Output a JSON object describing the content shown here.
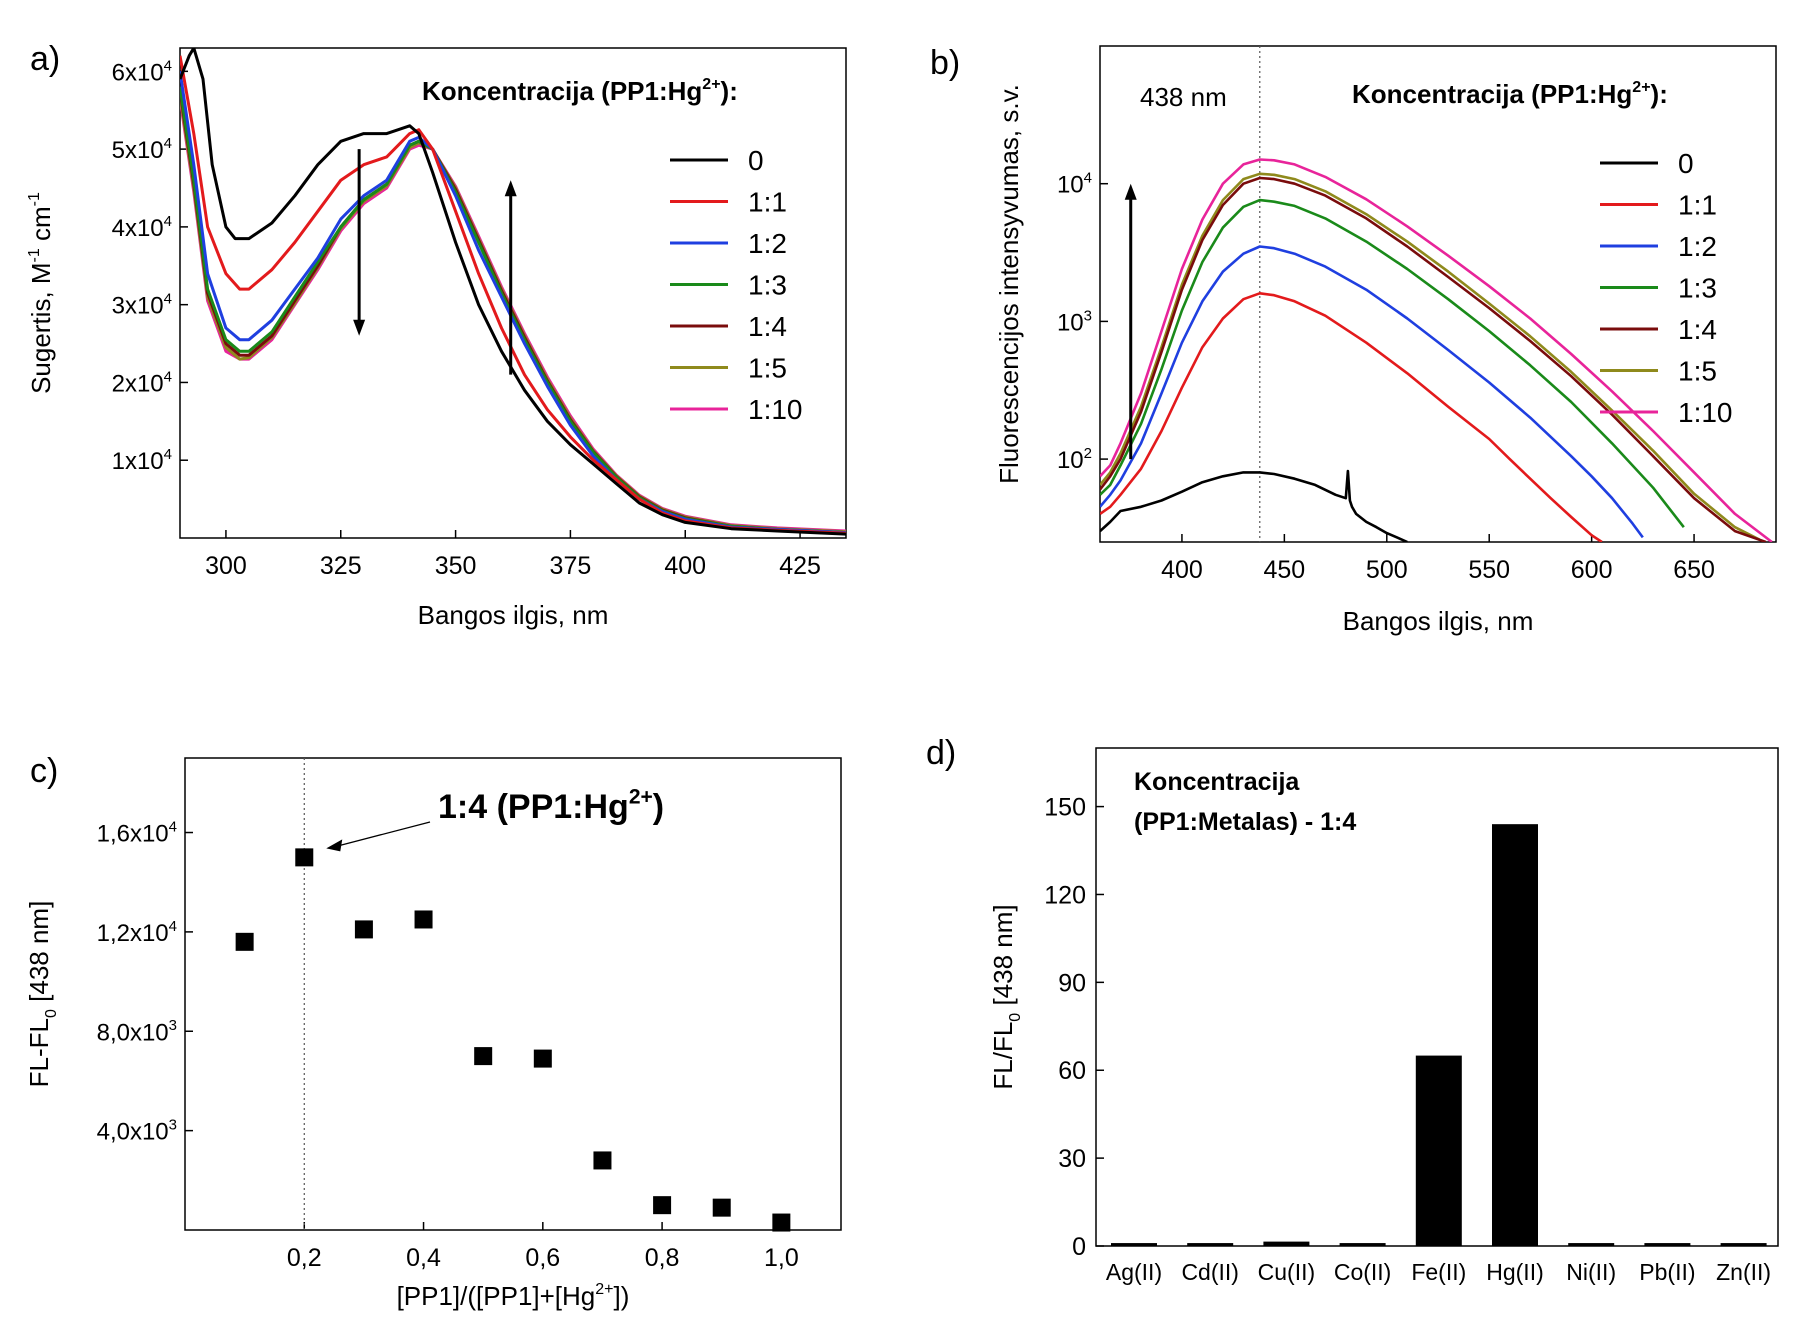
{
  "chart_data": [
    {
      "panel_label": "a)",
      "type": "line",
      "xlabel": "Bangos ilgis, nm",
      "ylabel": "Sugertis, M-1 cm-1",
      "xlim": [
        290,
        435
      ],
      "ylim": [
        0,
        63000
      ],
      "x_ticks": [
        300,
        325,
        350,
        375,
        400,
        425
      ],
      "y_ticks": [
        {
          "value": 10000,
          "mant": "1x10",
          "exp": "4"
        },
        {
          "value": 20000,
          "mant": "2x10",
          "exp": "4"
        },
        {
          "value": 30000,
          "mant": "3x10",
          "exp": "4"
        },
        {
          "value": 40000,
          "mant": "4x10",
          "exp": "4"
        },
        {
          "value": 50000,
          "mant": "5x10",
          "exp": "4"
        },
        {
          "value": 60000,
          "mant": "6x10",
          "exp": "4"
        }
      ],
      "legend": {
        "title": "Koncentracija (PP1:Hg",
        "title_sup": "2+",
        "title_end": "):",
        "placement": "top-right"
      },
      "annotations": [
        {
          "kind": "arrow-down",
          "x": 329,
          "y_from": 50000,
          "y_to": 26000
        },
        {
          "kind": "arrow-up",
          "x": 362,
          "y_from": 21000,
          "y_to": 46000
        }
      ],
      "series": [
        {
          "name": "0",
          "color": "#000000",
          "x": [
            290,
            292,
            293,
            295,
            297,
            300,
            302,
            305,
            310,
            315,
            320,
            325,
            330,
            335,
            340,
            342,
            345,
            350,
            355,
            360,
            365,
            370,
            375,
            380,
            385,
            390,
            395,
            400,
            410,
            420,
            435
          ],
          "y": [
            59000,
            62000,
            63000,
            59000,
            48000,
            40000,
            38500,
            38500,
            40500,
            44000,
            48000,
            51000,
            52000,
            52000,
            53000,
            52000,
            47000,
            38000,
            30000,
            24000,
            19000,
            15000,
            12000,
            9500,
            7000,
            4500,
            3000,
            2000,
            1200,
            900,
            500
          ]
        },
        {
          "name": "1:1",
          "color": "#e31a1c",
          "x": [
            290,
            293,
            296,
            300,
            303,
            305,
            310,
            315,
            320,
            325,
            330,
            335,
            340,
            342,
            345,
            350,
            355,
            360,
            365,
            370,
            375,
            380,
            385,
            390,
            395,
            400,
            410,
            420,
            435
          ],
          "y": [
            62000,
            52000,
            40000,
            34000,
            32000,
            32000,
            34500,
            38000,
            42000,
            46000,
            48000,
            49000,
            52000,
            52500,
            50000,
            42000,
            34000,
            27000,
            21000,
            16500,
            13000,
            10000,
            7500,
            5000,
            3200,
            2200,
            1300,
            1000,
            600
          ]
        },
        {
          "name": "1:2",
          "color": "#1f3fe0",
          "x": [
            290,
            293,
            296,
            300,
            303,
            305,
            310,
            315,
            320,
            325,
            330,
            335,
            340,
            342,
            345,
            350,
            355,
            360,
            365,
            370,
            375,
            380,
            385,
            390,
            395,
            400,
            410,
            420,
            435
          ],
          "y": [
            60000,
            48000,
            34000,
            27000,
            25500,
            25500,
            28000,
            32000,
            36000,
            41000,
            44000,
            46000,
            51000,
            51500,
            50000,
            44000,
            37000,
            31000,
            25000,
            19500,
            14500,
            10500,
            7500,
            5000,
            3400,
            2400,
            1400,
            1100,
            700
          ]
        },
        {
          "name": "1:3",
          "color": "#1a8a1a",
          "x": [
            290,
            293,
            296,
            300,
            303,
            305,
            310,
            315,
            320,
            325,
            330,
            335,
            340,
            342,
            345,
            350,
            355,
            360,
            365,
            370,
            375,
            380,
            385,
            390,
            395,
            400,
            410,
            420,
            435
          ],
          "y": [
            58000,
            46000,
            32000,
            25500,
            24000,
            24000,
            26500,
            31000,
            35500,
            40000,
            43500,
            45500,
            50500,
            51000,
            50000,
            44500,
            38000,
            31500,
            25500,
            20000,
            15000,
            11000,
            7800,
            5200,
            3500,
            2500,
            1500,
            1100,
            700
          ]
        },
        {
          "name": "1:4",
          "color": "#7a0c0c",
          "x": [
            290,
            293,
            296,
            300,
            303,
            305,
            310,
            315,
            320,
            325,
            330,
            335,
            340,
            342,
            345,
            350,
            355,
            360,
            365,
            370,
            375,
            380,
            385,
            390,
            395,
            400,
            410,
            420,
            435
          ],
          "y": [
            57500,
            45500,
            31500,
            25000,
            23500,
            23500,
            26000,
            30500,
            35000,
            40000,
            43500,
            45500,
            50500,
            51000,
            50000,
            44800,
            38300,
            31800,
            25800,
            20200,
            15200,
            11100,
            7900,
            5300,
            3600,
            2600,
            1500,
            1100,
            700
          ]
        },
        {
          "name": "1:5",
          "color": "#8f8a1c",
          "x": [
            290,
            293,
            296,
            300,
            303,
            305,
            310,
            315,
            320,
            325,
            330,
            335,
            340,
            342,
            345,
            350,
            355,
            360,
            365,
            370,
            375,
            380,
            385,
            390,
            395,
            400,
            410,
            420,
            435
          ],
          "y": [
            57000,
            45000,
            31000,
            24500,
            23000,
            23200,
            25800,
            30200,
            34800,
            39800,
            43300,
            45300,
            50200,
            50800,
            50000,
            45000,
            38500,
            32000,
            26000,
            20400,
            15400,
            11200,
            8000,
            5400,
            3700,
            2700,
            1600,
            1200,
            800
          ]
        },
        {
          "name": "1:10",
          "color": "#e8249a",
          "x": [
            290,
            293,
            296,
            300,
            303,
            305,
            310,
            315,
            320,
            325,
            330,
            335,
            340,
            342,
            345,
            350,
            355,
            360,
            365,
            370,
            375,
            380,
            385,
            390,
            395,
            400,
            410,
            420,
            435
          ],
          "y": [
            56500,
            44500,
            30500,
            24000,
            23000,
            23000,
            25500,
            30000,
            34500,
            39500,
            43000,
            45000,
            50000,
            50500,
            50000,
            45200,
            38800,
            32300,
            26300,
            20700,
            15700,
            11400,
            8100,
            5500,
            3800,
            2800,
            1700,
            1300,
            900
          ]
        }
      ]
    },
    {
      "panel_label": "b)",
      "type": "line",
      "scale_y": "log",
      "xlabel": "Bangos ilgis, nm",
      "ylabel": "Fluorescencijos intensyvumas, s.v.",
      "xlim": [
        360,
        690
      ],
      "ylim": [
        25,
        100000
      ],
      "x_ticks": [
        400,
        450,
        500,
        550,
        600,
        650
      ],
      "y_ticks": [
        {
          "value": 100,
          "mant": "10",
          "exp": "2"
        },
        {
          "value": 1000,
          "mant": "10",
          "exp": "3"
        },
        {
          "value": 10000,
          "mant": "10",
          "exp": "4"
        }
      ],
      "vline_x": 438,
      "peak_label": "438 nm",
      "legend": {
        "title": "Koncentracija (PP1:Hg",
        "title_sup": "2+",
        "title_end": "):",
        "placement": "top-right"
      },
      "annotations": [
        {
          "kind": "arrow-up",
          "x": 375,
          "y_from": 100,
          "y_to": 10000
        }
      ],
      "series": [
        {
          "name": "0",
          "color": "#000000",
          "x": [
            360,
            365,
            370,
            380,
            390,
            400,
            410,
            420,
            430,
            438,
            445,
            455,
            465,
            475,
            480,
            481,
            482,
            483,
            485,
            490,
            495,
            500,
            505,
            510
          ],
          "y": [
            30,
            35,
            42,
            45,
            50,
            58,
            68,
            75,
            80,
            80,
            78,
            72,
            65,
            55,
            52,
            82,
            50,
            45,
            40,
            35,
            32,
            29,
            27,
            25
          ]
        },
        {
          "name": "1:1",
          "color": "#e31a1c",
          "x": [
            360,
            365,
            370,
            380,
            390,
            400,
            410,
            420,
            430,
            438,
            445,
            455,
            470,
            490,
            510,
            530,
            550,
            560,
            570,
            580,
            590,
            600,
            605
          ],
          "y": [
            40,
            45,
            55,
            85,
            160,
            330,
            650,
            1050,
            1450,
            1600,
            1550,
            1400,
            1100,
            700,
            420,
            240,
            140,
            100,
            72,
            52,
            38,
            28,
            25
          ]
        },
        {
          "name": "1:2",
          "color": "#1f3fe0",
          "x": [
            360,
            365,
            370,
            380,
            390,
            400,
            410,
            420,
            430,
            438,
            445,
            455,
            470,
            490,
            510,
            530,
            550,
            570,
            590,
            600,
            610,
            620,
            625
          ],
          "y": [
            45,
            55,
            70,
            130,
            300,
            700,
            1400,
            2300,
            3100,
            3500,
            3400,
            3100,
            2500,
            1700,
            1050,
            620,
            360,
            200,
            105,
            75,
            52,
            34,
            27
          ]
        },
        {
          "name": "1:3",
          "color": "#1a8a1a",
          "x": [
            360,
            365,
            370,
            380,
            390,
            400,
            410,
            420,
            430,
            438,
            445,
            455,
            470,
            490,
            510,
            530,
            550,
            570,
            590,
            610,
            630,
            645
          ],
          "y": [
            55,
            65,
            90,
            180,
            450,
            1200,
            2700,
            4800,
            6800,
            7600,
            7400,
            6900,
            5600,
            3800,
            2400,
            1450,
            850,
            480,
            260,
            130,
            62,
            32
          ]
        },
        {
          "name": "1:4",
          "color": "#7a0c0c",
          "x": [
            360,
            365,
            370,
            380,
            390,
            400,
            410,
            420,
            430,
            438,
            445,
            455,
            470,
            490,
            510,
            530,
            550,
            570,
            590,
            610,
            630,
            650,
            670,
            685
          ],
          "y": [
            60,
            75,
            100,
            220,
            600,
            1700,
            3900,
            7000,
            10000,
            11000,
            10800,
            10000,
            8200,
            5600,
            3500,
            2100,
            1250,
            720,
            400,
            210,
            105,
            52,
            30,
            25
          ]
        },
        {
          "name": "1:5",
          "color": "#8f8a1c",
          "x": [
            360,
            365,
            370,
            380,
            390,
            400,
            410,
            420,
            430,
            438,
            445,
            455,
            470,
            490,
            510,
            530,
            550,
            570,
            590,
            610,
            630,
            650,
            670,
            682
          ],
          "y": [
            65,
            80,
            110,
            240,
            650,
            1850,
            4200,
            7600,
            10800,
            11800,
            11600,
            10800,
            8800,
            6000,
            3800,
            2300,
            1350,
            780,
            430,
            225,
            115,
            56,
            32,
            26
          ]
        },
        {
          "name": "1:10",
          "color": "#e8249a",
          "x": [
            360,
            365,
            370,
            380,
            390,
            400,
            410,
            420,
            430,
            438,
            445,
            455,
            470,
            490,
            510,
            530,
            550,
            570,
            590,
            610,
            630,
            650,
            670,
            688
          ],
          "y": [
            75,
            90,
            130,
            300,
            850,
            2400,
            5500,
            10000,
            13800,
            15000,
            14800,
            13800,
            11200,
            7700,
            4900,
            3000,
            1800,
            1050,
            580,
            310,
            160,
            80,
            40,
            25
          ]
        }
      ]
    },
    {
      "panel_label": "c)",
      "type": "scatter",
      "xlabel_parts": {
        "main": "[PP1]/([PP1]+[Hg",
        "sup": "2+",
        "end": "])"
      },
      "ylabel_parts": {
        "main": "FL-FL",
        "sub": "0",
        "end": " [438 nm]"
      },
      "xlim": [
        0,
        1.1
      ],
      "ylim": [
        0,
        19000
      ],
      "x_ticks": [
        {
          "value": 0.2,
          "label": "0,2"
        },
        {
          "value": 0.4,
          "label": "0,4"
        },
        {
          "value": 0.6,
          "label": "0,6"
        },
        {
          "value": 0.8,
          "label": "0,8"
        },
        {
          "value": 1.0,
          "label": "1,0"
        }
      ],
      "y_ticks": [
        {
          "value": 4000,
          "mant": "4,0x10",
          "exp": "3"
        },
        {
          "value": 8000,
          "mant": "8,0x10",
          "exp": "3"
        },
        {
          "value": 12000,
          "mant": "1,2x10",
          "exp": "4"
        },
        {
          "value": 16000,
          "mant": "1,6x10",
          "exp": "4"
        }
      ],
      "vline_x": 0.2,
      "annotation": {
        "main": "1:4 (PP1:Hg",
        "sup": "2+",
        "end": ")",
        "x": 0.2,
        "y": 15000
      },
      "series": [
        {
          "name": "",
          "color": "#000000",
          "x": [
            0.1,
            0.2,
            0.3,
            0.4,
            0.5,
            0.6,
            0.7,
            0.8,
            0.9,
            1.0
          ],
          "y": [
            11600,
            15000,
            12100,
            12500,
            7000,
            6900,
            2800,
            1000,
            900,
            300
          ]
        }
      ]
    },
    {
      "panel_label": "d)",
      "type": "bar",
      "ylabel_parts": {
        "main": "FL/FL",
        "sub": "0",
        "end": " [438 nm]"
      },
      "ylim": [
        0,
        170
      ],
      "y_ticks": [
        0,
        30,
        60,
        90,
        120,
        150
      ],
      "legend_text": [
        "Koncentracija",
        "(PP1:Metalas) - 1:4"
      ],
      "categories": [
        "Ag(II)",
        "Cd(II)",
        "Cu(II)",
        "Co(II)",
        "Fe(II)",
        "Hg(II)",
        "Ni(II)",
        "Pb(II)",
        "Zn(II)"
      ],
      "values": [
        1,
        1,
        1.5,
        1,
        65,
        144,
        1,
        1,
        1
      ],
      "color": "#000000"
    }
  ]
}
